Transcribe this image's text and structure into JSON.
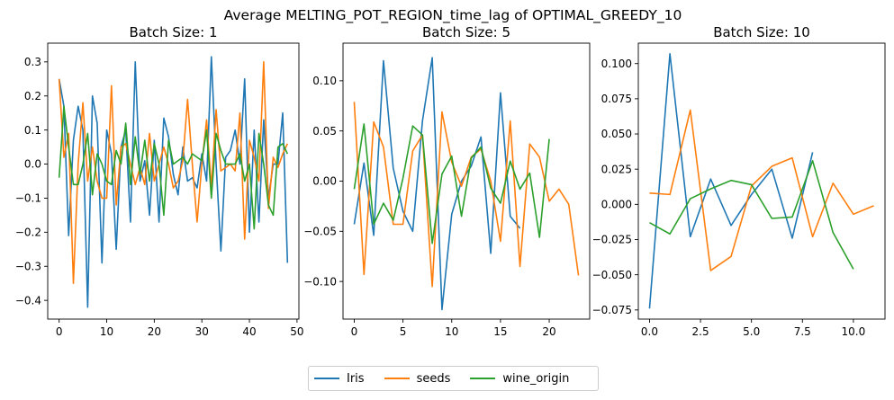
{
  "chart_data": {
    "suptitle": "Average MELTING_POT_REGION_time_lag of OPTIMAL_GREEDY_10",
    "type": "line",
    "legend": {
      "placement": "bottom-center",
      "entries": [
        {
          "name": "Iris",
          "color": "#1f77b4"
        },
        {
          "name": "seeds",
          "color": "#ff7f0e"
        },
        {
          "name": "wine_origin",
          "color": "#2ca02c"
        }
      ]
    },
    "subplots": [
      {
        "title": "Batch Size: 1",
        "xlim": [
          -2.4,
          50.4
        ],
        "ylim": [
          -0.455,
          0.355
        ],
        "xticks": [
          0,
          10,
          20,
          30,
          40,
          50
        ],
        "xtick_labels": [
          "0",
          "10",
          "20",
          "30",
          "40",
          "50"
        ],
        "yticks": [
          -0.4,
          -0.3,
          -0.2,
          -0.1,
          0.0,
          0.1,
          0.2,
          0.3
        ],
        "ytick_labels": [
          "−0.4",
          "−0.3",
          "−0.2",
          "−0.1",
          "0.0",
          "0.1",
          "0.2",
          "0.3"
        ],
        "series": [
          {
            "name": "Iris",
            "values": [
              0.25,
              0.17,
              -0.21,
              0.07,
              0.17,
              0.1,
              -0.42,
              0.2,
              0.12,
              -0.29,
              0.1,
              0.03,
              -0.25,
              0.05,
              0.1,
              -0.17,
              0.3,
              -0.05,
              0.01,
              -0.15,
              0.07,
              -0.17,
              0.135,
              0.08,
              -0.03,
              -0.09,
              0.05,
              -0.05,
              -0.04,
              -0.07,
              0.03,
              -0.05,
              0.315,
              0.0,
              -0.255,
              0.02,
              0.04,
              0.1,
              0.0,
              0.25,
              -0.2,
              0.1,
              -0.17,
              0.13,
              -0.1,
              0.0,
              0.0,
              0.15,
              -0.29
            ]
          },
          {
            "name": "seeds",
            "values": [
              0.25,
              0.02,
              0.09,
              -0.35,
              0.0,
              0.18,
              -0.05,
              0.05,
              -0.05,
              -0.1,
              -0.1,
              0.23,
              -0.12,
              0.05,
              0.06,
              0.0,
              -0.06,
              -0.01,
              -0.06,
              0.09,
              -0.05,
              0.0,
              0.05,
              0.0,
              -0.07,
              -0.05,
              0.01,
              0.19,
              0.0,
              -0.17,
              0.0,
              0.13,
              -0.07,
              0.16,
              -0.02,
              -0.01,
              0.0,
              -0.02,
              0.15,
              -0.22,
              0.07,
              0.02,
              -0.05,
              0.3,
              -0.13,
              0.02,
              -0.01,
              0.03,
              0.06
            ]
          },
          {
            "name": "wine_origin",
            "values": [
              -0.04,
              0.17,
              0.05,
              -0.06,
              -0.06,
              0.0,
              0.09,
              -0.09,
              0.03,
              0.0,
              -0.05,
              -0.06,
              0.04,
              0.0,
              0.12,
              -0.06,
              0.08,
              -0.03,
              0.07,
              -0.05,
              0.06,
              0.0,
              -0.15,
              0.07,
              0.0,
              0.01,
              0.02,
              0.0,
              0.03,
              0.02,
              0.01,
              0.1,
              -0.1,
              0.09,
              0.04,
              0.0,
              0.0,
              0.0,
              0.03,
              -0.05,
              0.0,
              -0.19,
              0.09,
              0.0,
              -0.12,
              -0.15,
              0.05,
              0.06,
              0.03
            ]
          }
        ]
      },
      {
        "title": "Batch Size: 5",
        "xlim": [
          -1.15,
          24.15
        ],
        "ylim": [
          -0.1375,
          0.1375
        ],
        "xticks": [
          0,
          5,
          10,
          15,
          20
        ],
        "xtick_labels": [
          "0",
          "5",
          "10",
          "15",
          "20"
        ],
        "yticks": [
          -0.1,
          -0.05,
          0.0,
          0.05,
          0.1
        ],
        "ytick_labels": [
          "−0.10",
          "−0.05",
          "0.00",
          "0.05",
          "0.10"
        ],
        "series": [
          {
            "name": "Iris",
            "values": [
              -0.043,
              0.018,
              -0.054,
              0.12,
              0.013,
              -0.03,
              -0.05,
              0.06,
              0.123,
              -0.128,
              -0.033,
              0.0,
              0.015,
              0.044,
              -0.072,
              0.088,
              -0.035,
              -0.047
            ]
          },
          {
            "name": "seeds",
            "values": [
              0.079,
              -0.093,
              0.059,
              0.034,
              -0.043,
              -0.043,
              0.03,
              0.046,
              -0.105,
              0.069,
              0.019,
              -0.005,
              0.024,
              0.032,
              0.0,
              -0.06,
              0.06,
              -0.085,
              0.037,
              0.024,
              -0.02,
              -0.008,
              -0.023,
              -0.094
            ]
          },
          {
            "name": "wine_origin",
            "values": [
              -0.008,
              0.057,
              -0.043,
              -0.022,
              -0.039,
              0.003,
              0.055,
              0.046,
              -0.062,
              0.007,
              0.025,
              -0.035,
              0.023,
              0.034,
              -0.007,
              -0.022,
              0.02,
              -0.008,
              0.008,
              -0.056,
              0.042
            ]
          }
        ]
      },
      {
        "title": "Batch Size: 10",
        "xlim": [
          -0.55,
          11.55
        ],
        "ylim": [
          -0.0815,
          0.1145
        ],
        "xticks": [
          0,
          2.5,
          5,
          7.5,
          10
        ],
        "xtick_labels": [
          "0.0",
          "2.5",
          "5.0",
          "7.5",
          "10.0"
        ],
        "yticks": [
          -0.075,
          -0.05,
          -0.025,
          0.0,
          0.025,
          0.05,
          0.075,
          0.1
        ],
        "ytick_labels": [
          "−0.075",
          "−0.050",
          "−0.025",
          "0.000",
          "0.025",
          "0.050",
          "0.075",
          "0.100"
        ],
        "series": [
          {
            "name": "Iris",
            "values": [
              -0.074,
              0.107,
              -0.023,
              0.018,
              -0.015,
              0.007,
              0.025,
              -0.024,
              0.037
            ]
          },
          {
            "name": "seeds",
            "values": [
              0.008,
              0.007,
              0.067,
              -0.047,
              -0.037,
              0.013,
              0.027,
              0.033,
              -0.023,
              0.015,
              -0.007,
              -0.001
            ]
          },
          {
            "name": "wine_origin",
            "values": [
              -0.013,
              -0.021,
              0.004,
              0.011,
              0.017,
              0.014,
              -0.01,
              -0.009,
              0.031,
              -0.02,
              -0.046
            ]
          }
        ]
      }
    ]
  }
}
